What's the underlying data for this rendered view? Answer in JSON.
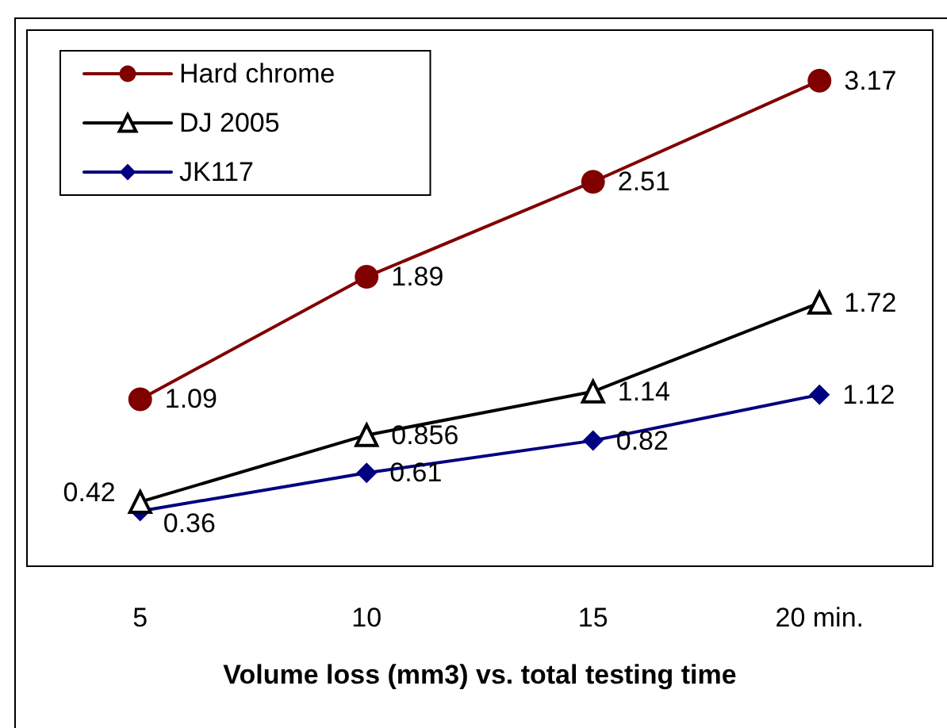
{
  "chart_data": {
    "type": "line",
    "xlabel": "Volume loss (mm3) vs. total testing time",
    "categories": [
      "5",
      "10",
      "15",
      "20 min."
    ],
    "series": [
      {
        "name": "Hard chrome",
        "color": "#800000",
        "marker": "circle",
        "values": [
          1.09,
          1.89,
          2.51,
          3.17
        ]
      },
      {
        "name": "DJ 2005",
        "color": "#000000",
        "marker": "triangle",
        "values": [
          0.42,
          0.856,
          1.14,
          1.72
        ]
      },
      {
        "name": "JK117",
        "color": "#000080",
        "marker": "diamond",
        "values": [
          0.36,
          0.61,
          0.82,
          1.12
        ]
      }
    ],
    "data_labels": true,
    "grid": false,
    "legend": "top left",
    "line_style": "solid"
  }
}
